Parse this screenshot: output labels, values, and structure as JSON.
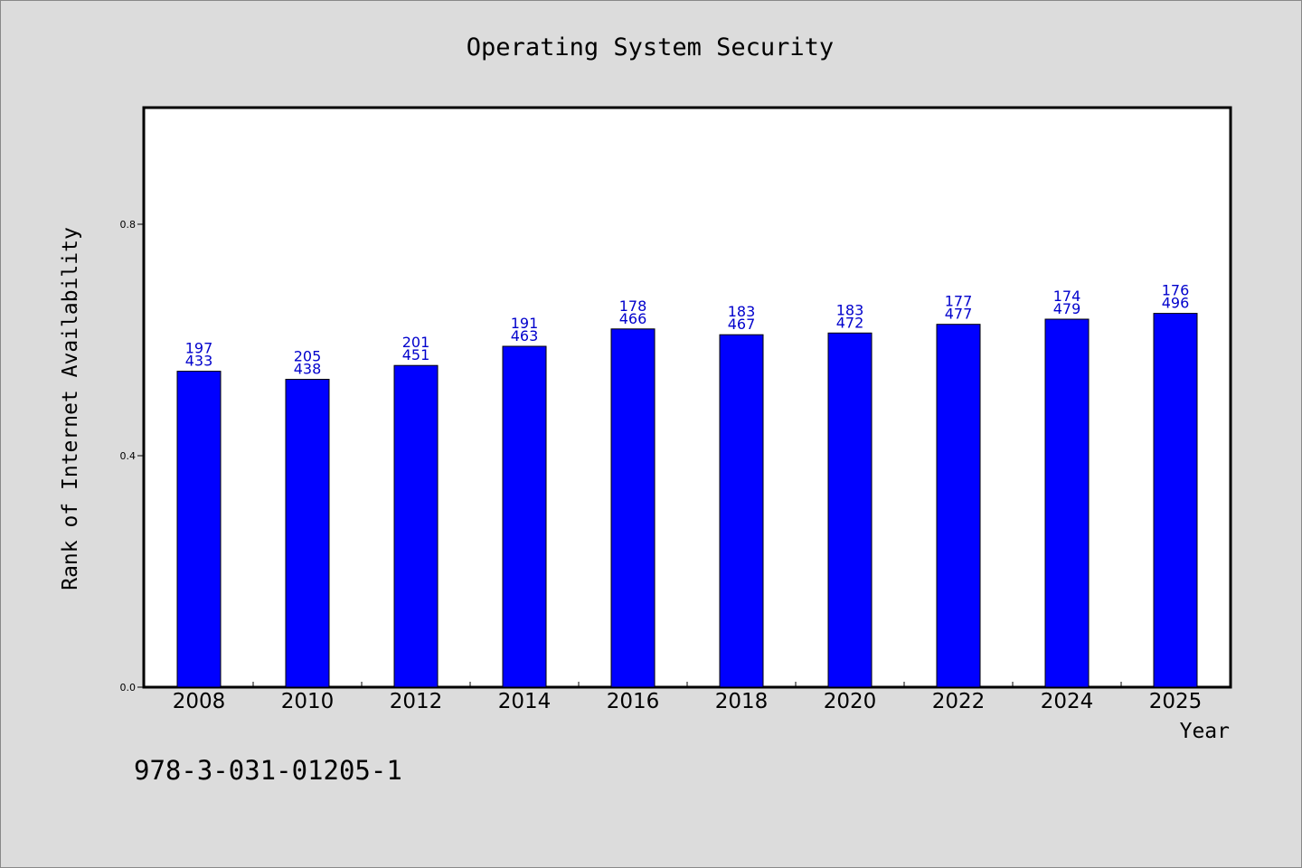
{
  "chart_data": {
    "type": "bar",
    "title": "Operating System Security",
    "xlabel": "Year",
    "ylabel": "Rank of Internet Availability",
    "categories": [
      "2008",
      "2010",
      "2012",
      "2014",
      "2016",
      "2018",
      "2020",
      "2022",
      "2024",
      "2025"
    ],
    "values": [
      0.546,
      0.532,
      0.556,
      0.589,
      0.619,
      0.609,
      0.612,
      0.627,
      0.636,
      0.646
    ],
    "annotations_top": [
      "197",
      "205",
      "201",
      "191",
      "178",
      "183",
      "183",
      "177",
      "174",
      "176"
    ],
    "annotations_bottom": [
      "433",
      "438",
      "451",
      "463",
      "466",
      "467",
      "472",
      "477",
      "479",
      "496"
    ],
    "yticks": [
      "0.0",
      "0.4",
      "0.8"
    ],
    "ytick_values": [
      0.0,
      0.4,
      0.8
    ],
    "ylim": [
      0,
      1.0
    ],
    "bar_color": "#0000ff",
    "label_color": "#0000cc",
    "grid": false
  },
  "footer_text": "978-3-031-01205-1"
}
